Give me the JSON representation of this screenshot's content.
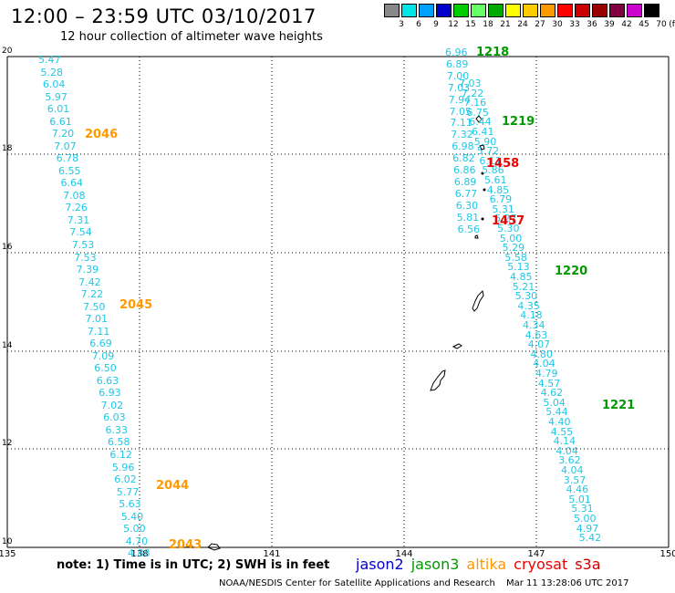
{
  "title": "12:00 – 23:59 UTC 03/10/2017",
  "subtitle": "12 hour collection of altimeter wave heights",
  "colorbar": {
    "unit": "(ft)",
    "labels": [
      "3",
      "6",
      "9",
      "12",
      "15",
      "18",
      "21",
      "24",
      "27",
      "30",
      "33",
      "36",
      "39",
      "42",
      "45",
      "70"
    ],
    "colors": [
      "#888888",
      "#00e6e6",
      "#00a0ff",
      "#0000cc",
      "#00cc00",
      "#66ff66",
      "#00aa00",
      "#ffff00",
      "#ffcc00",
      "#ff9900",
      "#ff0000",
      "#cc0000",
      "#990000",
      "#800040",
      "#cc00cc",
      "#000000"
    ]
  },
  "axes": {
    "lat_ticks": [
      "20",
      "18",
      "16",
      "14",
      "12",
      "10"
    ],
    "lon_ticks": [
      "135",
      "138",
      "141",
      "144",
      "147",
      "150"
    ]
  },
  "tracks": [
    {
      "values": [
        "5.47",
        "5.28",
        "6.04",
        "5.97",
        "6.01",
        "6.61",
        "7.20",
        "7.07",
        "6.78",
        "6.55",
        "6.64",
        "7.08",
        "7.26",
        "7.31",
        "7.54",
        "7.53",
        "7.53",
        "7.39",
        "7.42",
        "7.22",
        "7.50",
        "7.01",
        "7.11",
        "6.69",
        "7.09",
        "6.50",
        "6.63",
        "6.93",
        "7.02",
        "6.03",
        "6.33",
        "6.58",
        "6.12",
        "5.96",
        "6.02",
        "5.77",
        "5.63",
        "5.40",
        "5.00",
        "4.70",
        "4.88"
      ]
    },
    {
      "values": [
        "6.96",
        "6.89",
        "7.00",
        "7.03",
        "7.94",
        "7.05",
        "7.11",
        "7.32",
        "6.98",
        "6.82",
        "6.86",
        "6.89",
        "6.77",
        "6.30",
        "5.81",
        "6.56"
      ]
    },
    {
      "values": [
        "7.03",
        "7.22",
        "7.16",
        "6.75",
        "6.44",
        "6.41",
        "5.90",
        "5.72",
        "6.11",
        "5.86",
        "5.61",
        "4.85",
        "6.79",
        "5.31",
        "5.27",
        "5.30",
        "5.00",
        "5.29",
        "5.58",
        "5.13",
        "4.85",
        "5.21",
        "5.30",
        "4.35",
        "4.18",
        "4.34",
        "4.63",
        "4.07",
        "4.80",
        "4.04",
        "4.79",
        "4.57",
        "4.62",
        "5.04",
        "5.44",
        "4.40",
        "4.55",
        "4.14",
        "4.04",
        "3.62",
        "4.04",
        "3.57",
        "4.46",
        "5.01",
        "5.31",
        "5.00",
        "4.97",
        "5.42"
      ]
    }
  ],
  "pass_labels": [
    {
      "text": "2046",
      "color": "#ff9900"
    },
    {
      "text": "2045",
      "color": "#ff9900"
    },
    {
      "text": "2044",
      "color": "#ff9900"
    },
    {
      "text": "2043",
      "color": "#ff9900"
    },
    {
      "text": "1218",
      "color": "#009900"
    },
    {
      "text": "1219",
      "color": "#009900"
    },
    {
      "text": "1220",
      "color": "#009900"
    },
    {
      "text": "1221",
      "color": "#009900"
    },
    {
      "text": "1458",
      "color": "#ee0000"
    },
    {
      "text": "1457",
      "color": "#ee0000"
    }
  ],
  "note": "note: 1) Time is in UTC; 2) SWH is in feet",
  "legend": [
    {
      "text": "jason2",
      "color": "#0000cc"
    },
    {
      "text": "jason3",
      "color": "#009900"
    },
    {
      "text": "altika",
      "color": "#ff9900"
    },
    {
      "text": "cryosat",
      "color": "#ee0000"
    },
    {
      "text": "s3a",
      "color": "#cc0000"
    }
  ],
  "credit": "NOAA/NESDIS Center for Satellite Applications and Research",
  "timestamp": "Mar 11 13:28:06 UTC 2017"
}
